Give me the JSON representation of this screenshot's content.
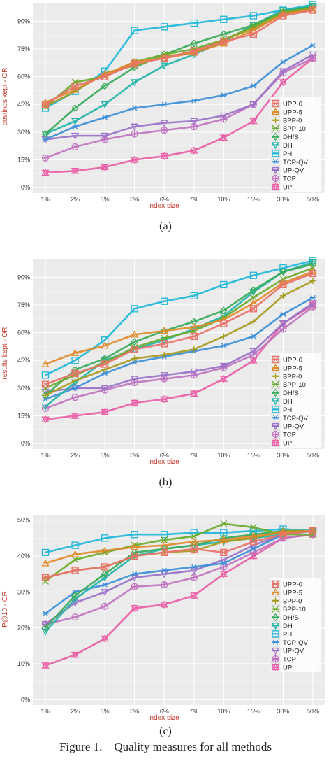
{
  "caption": {
    "figure": "Figure 1.",
    "text": "Quality measures for all methods"
  },
  "legend": [
    {
      "name": "UPP-0",
      "color": "#e8736a",
      "marker": "square-x"
    },
    {
      "name": "UPP-5",
      "color": "#e08a2a",
      "marker": "triangle"
    },
    {
      "name": "BPP-0",
      "color": "#a69a1e",
      "marker": "plus"
    },
    {
      "name": "BPP-10",
      "color": "#6aaa2a",
      "marker": "x"
    },
    {
      "name": "DH/S",
      "color": "#3aaa5a",
      "marker": "diamond"
    },
    {
      "name": "DH",
      "color": "#22b3a8",
      "marker": "triangle-down"
    },
    {
      "name": "PH",
      "color": "#1fb7d8",
      "marker": "square"
    },
    {
      "name": "TCP-QV",
      "color": "#3d8fd8",
      "marker": "asterisk"
    },
    {
      "name": "UP-QV",
      "color": "#9a72c8",
      "marker": "triangle-down"
    },
    {
      "name": "TCP",
      "color": "#c074c0",
      "marker": "circle-plus"
    },
    {
      "name": "UP",
      "color": "#e95ea6",
      "marker": "star"
    }
  ],
  "chart_data": [
    {
      "type": "line",
      "sublabel": "(a)",
      "xlabel": "index size",
      "ylabel": "postings kept - OR",
      "categories": [
        "1%",
        "2%",
        "3%",
        "5%",
        "6%",
        "7%",
        "10%",
        "15%",
        "30%",
        "50%"
      ],
      "yticks": [
        "0%",
        "15%",
        "30%",
        "45%",
        "60%",
        "75%",
        "90%"
      ],
      "ytick_values": [
        0,
        15,
        30,
        45,
        60,
        75,
        90
      ],
      "ylim": [
        -3,
        100
      ],
      "grid": true,
      "legend_position": "right",
      "series": [
        {
          "name": "UPP-0",
          "values": [
            45,
            55,
            60,
            67,
            70,
            74,
            79,
            83,
            93,
            96
          ]
        },
        {
          "name": "UPP-5",
          "values": [
            46,
            53,
            61,
            68,
            70,
            73,
            78,
            85,
            94,
            96
          ]
        },
        {
          "name": "BPP-0",
          "values": [
            44,
            52,
            62,
            66,
            71,
            73,
            80,
            86,
            94,
            97
          ]
        },
        {
          "name": "BPP-10",
          "values": [
            44,
            57,
            60,
            68,
            72,
            75,
            80,
            87,
            95,
            97
          ]
        },
        {
          "name": "DH/S",
          "values": [
            29,
            43,
            55,
            65,
            72,
            78,
            83,
            88,
            95,
            98
          ]
        },
        {
          "name": "DH",
          "values": [
            29,
            36,
            45,
            57,
            66,
            72,
            79,
            88,
            96,
            98
          ]
        },
        {
          "name": "PH",
          "values": [
            43,
            52,
            63,
            85,
            87,
            89,
            91,
            93,
            96,
            99
          ]
        },
        {
          "name": "TCP-QV",
          "values": [
            26,
            33,
            38,
            43,
            45,
            47,
            50,
            55,
            68,
            77
          ]
        },
        {
          "name": "UP-QV",
          "values": [
            26,
            28,
            28,
            33,
            35,
            36,
            39,
            45,
            63,
            72
          ]
        },
        {
          "name": "TCP",
          "values": [
            16,
            22,
            26,
            29,
            31,
            33,
            37,
            45,
            62,
            70
          ]
        },
        {
          "name": "UP",
          "values": [
            8,
            9,
            11,
            15,
            17,
            20,
            27,
            36,
            57,
            70
          ]
        }
      ]
    },
    {
      "type": "line",
      "sublabel": "(b)",
      "xlabel": "index size",
      "ylabel": "results kept - OR",
      "categories": [
        "1%",
        "2%",
        "3%",
        "5%",
        "6%",
        "7%",
        "10%",
        "15%",
        "30%",
        "50%"
      ],
      "yticks": [
        "0%",
        "15%",
        "30%",
        "45%",
        "60%",
        "75%",
        "90%"
      ],
      "ytick_values": [
        0,
        15,
        30,
        45,
        60,
        75,
        90
      ],
      "ylim": [
        -3,
        100
      ],
      "grid": true,
      "legend_position": "right",
      "series": [
        {
          "name": "UPP-0",
          "values": [
            32,
            38,
            43,
            51,
            54,
            58,
            65,
            73,
            86,
            92
          ]
        },
        {
          "name": "UPP-5",
          "values": [
            43,
            49,
            53,
            59,
            61,
            63,
            67,
            76,
            87,
            93
          ]
        },
        {
          "name": "BPP-0",
          "values": [
            26,
            34,
            40,
            46,
            48,
            51,
            58,
            66,
            80,
            88
          ]
        },
        {
          "name": "BPP-10",
          "values": [
            30,
            37,
            44,
            52,
            57,
            61,
            68,
            79,
            89,
            95
          ]
        },
        {
          "name": "DH/S",
          "values": [
            26,
            40,
            46,
            55,
            61,
            66,
            72,
            83,
            93,
            97
          ]
        },
        {
          "name": "DH",
          "values": [
            20,
            33,
            45,
            51,
            56,
            62,
            69,
            82,
            93,
            98
          ]
        },
        {
          "name": "PH",
          "values": [
            37,
            45,
            56,
            73,
            77,
            80,
            86,
            91,
            95,
            99
          ]
        },
        {
          "name": "TCP-QV",
          "values": [
            24,
            30,
            38,
            44,
            47,
            50,
            53,
            58,
            70,
            79
          ]
        },
        {
          "name": "UP-QV",
          "values": [
            28,
            30,
            30,
            35,
            37,
            39,
            42,
            50,
            65,
            76
          ]
        },
        {
          "name": "TCP",
          "values": [
            19,
            25,
            29,
            33,
            35,
            37,
            41,
            48,
            62,
            74
          ]
        },
        {
          "name": "UP",
          "values": [
            13,
            15,
            17,
            22,
            24,
            27,
            35,
            45,
            65,
            75
          ]
        }
      ]
    },
    {
      "type": "line",
      "sublabel": "(c)",
      "xlabel": "index size",
      "ylabel": "P@10 - OR",
      "categories": [
        "1%",
        "2%",
        "3%",
        "5%",
        "6%",
        "7%",
        "10%",
        "15%",
        "30%",
        "50%"
      ],
      "yticks": [
        "0%",
        "10%",
        "20%",
        "30%",
        "40%",
        "50%"
      ],
      "ytick_values": [
        0,
        10,
        20,
        30,
        40,
        50
      ],
      "ylim": [
        -1.5,
        51.5
      ],
      "grid": true,
      "legend_position": "right",
      "series": [
        {
          "name": "UPP-0",
          "values": [
            34,
            36,
            37,
            40,
            41,
            42,
            41,
            44,
            46,
            47
          ]
        },
        {
          "name": "UPP-5",
          "values": [
            38,
            40.5,
            41.5,
            42.5,
            43,
            44,
            44.5,
            45.5,
            46.5,
            47
          ]
        },
        {
          "name": "BPP-0",
          "values": [
            34,
            36,
            37,
            40,
            41,
            41.5,
            44,
            45,
            47,
            47
          ]
        },
        {
          "name": "BPP-10",
          "values": [
            33,
            39,
            41,
            43,
            44.5,
            45.5,
            49,
            48,
            46,
            46
          ]
        },
        {
          "name": "DH/S",
          "values": [
            20,
            29,
            35,
            41,
            42,
            43,
            45,
            46,
            47,
            47
          ]
        },
        {
          "name": "DH",
          "values": [
            19,
            28,
            34,
            40,
            42,
            43,
            44,
            45,
            46,
            47
          ]
        },
        {
          "name": "PH",
          "values": [
            41,
            43,
            45,
            46,
            46,
            46.5,
            46.5,
            47,
            47.5,
            47
          ]
        },
        {
          "name": "TCP-QV",
          "values": [
            24,
            30,
            32,
            35,
            36,
            37,
            38,
            42,
            46,
            47
          ]
        },
        {
          "name": "UP-QV",
          "values": [
            21,
            27,
            30,
            34,
            35,
            36,
            39,
            43,
            46,
            47
          ]
        },
        {
          "name": "TCP",
          "values": [
            21,
            23,
            26,
            31.5,
            32,
            34,
            37,
            41,
            45,
            46
          ]
        },
        {
          "name": "UP",
          "values": [
            9.5,
            12.5,
            17,
            25.5,
            26.5,
            29,
            35,
            40,
            45,
            46
          ]
        }
      ]
    }
  ]
}
